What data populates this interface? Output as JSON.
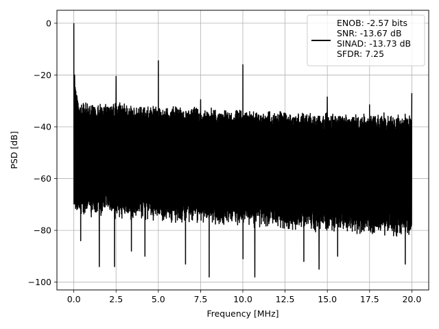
{
  "chart_data": {
    "type": "line",
    "xlabel": "Frequency [MHz]",
    "ylabel": "PSD [dB]",
    "xlim": [
      -1,
      21
    ],
    "ylim": [
      -103,
      5
    ],
    "x_ticks": [
      0.0,
      2.5,
      5.0,
      7.5,
      10.0,
      12.5,
      15.0,
      17.5,
      20.0
    ],
    "x_tick_labels": [
      "0.0",
      "2.5",
      "5.0",
      "7.5",
      "10.0",
      "12.5",
      "15.0",
      "17.5",
      "20.0"
    ],
    "y_ticks": [
      0,
      -20,
      -40,
      -60,
      -80,
      -100
    ],
    "y_tick_labels": [
      "0",
      "−20",
      "−40",
      "−60",
      "−80",
      "−100"
    ],
    "grid": true,
    "legend_position": "top-right",
    "series_color": "#000000",
    "legend_lines": [
      "ENOB: -2.57 bits",
      "SNR: -13.67 dB",
      "SINAD: -13.73 dB",
      "SFDR: 7.25"
    ],
    "frequency_range": [
      0,
      20
    ],
    "noise_floor_upper_db": [
      -31,
      -36
    ],
    "noise_floor_lower_db": [
      -72,
      -80
    ],
    "peaks": [
      {
        "x": 0.0,
        "y": 0
      },
      {
        "x": 0.05,
        "y": -20
      },
      {
        "x": 2.5,
        "y": -20.5
      },
      {
        "x": 5.0,
        "y": -14.5
      },
      {
        "x": 7.5,
        "y": -29.5
      },
      {
        "x": 10.0,
        "y": -16
      },
      {
        "x": 15.0,
        "y": -28.5
      },
      {
        "x": 17.5,
        "y": -31.5
      },
      {
        "x": 20.0,
        "y": -27
      }
    ],
    "dips": [
      {
        "x": 0.4,
        "y": -84
      },
      {
        "x": 1.5,
        "y": -94
      },
      {
        "x": 2.4,
        "y": -94
      },
      {
        "x": 3.4,
        "y": -88
      },
      {
        "x": 4.2,
        "y": -90
      },
      {
        "x": 6.6,
        "y": -93
      },
      {
        "x": 8.0,
        "y": -98
      },
      {
        "x": 10.0,
        "y": -91
      },
      {
        "x": 10.7,
        "y": -98
      },
      {
        "x": 13.6,
        "y": -92
      },
      {
        "x": 14.5,
        "y": -95
      },
      {
        "x": 15.6,
        "y": -90
      },
      {
        "x": 19.6,
        "y": -93
      }
    ]
  }
}
